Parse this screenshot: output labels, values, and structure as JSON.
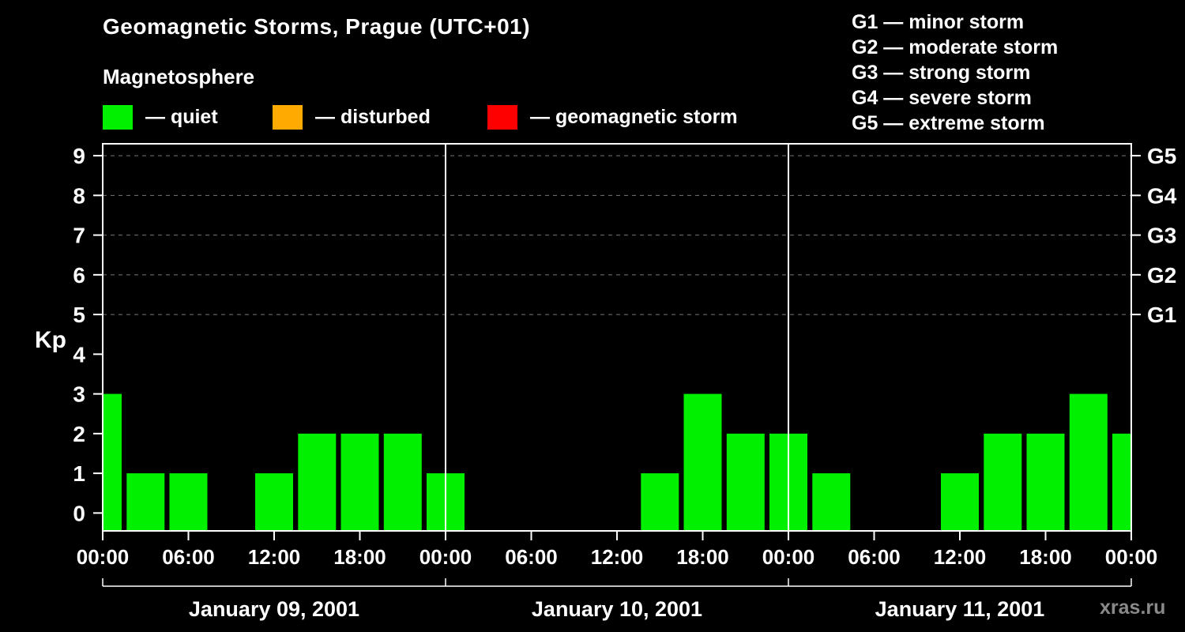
{
  "header": {
    "title": "Geomagnetic Storms, Prague (UTC+01)",
    "subtitle": "Magnetosphere"
  },
  "legend": [
    {
      "name": "quiet",
      "label": "— quiet",
      "color": "#00f000"
    },
    {
      "name": "disturbed",
      "label": "— disturbed",
      "color": "#ffaa00"
    },
    {
      "name": "storm",
      "label": "— geomagnetic storm",
      "color": "#ff0000"
    }
  ],
  "storm_scale_legend": [
    "G1 — minor storm",
    "G2 — moderate storm",
    "G3 — strong storm",
    "G4 — severe storm",
    "G5 — extreme storm"
  ],
  "watermark": "xras.ru",
  "chart_data": {
    "type": "bar",
    "ylabel": "Kp",
    "ylim": [
      -0.45,
      9.3
    ],
    "yticks": [
      0,
      1,
      2,
      3,
      4,
      5,
      6,
      7,
      8,
      9
    ],
    "grid_levels": [
      5,
      6,
      7,
      8,
      9
    ],
    "right_axis_labels": [
      {
        "kp": 5,
        "label": "G1"
      },
      {
        "kp": 6,
        "label": "G2"
      },
      {
        "kp": 7,
        "label": "G3"
      },
      {
        "kp": 8,
        "label": "G4"
      },
      {
        "kp": 9,
        "label": "G5"
      }
    ],
    "bar_color": "#00f000",
    "axis_color": "#ffffff",
    "grid_color": "#787878",
    "time_step_hours": 3,
    "total_hours": 72,
    "x_tick_step_hours": 6,
    "x_tick_labels": [
      "00:00",
      "06:00",
      "12:00",
      "18:00",
      "00:00",
      "06:00",
      "12:00",
      "18:00",
      "00:00",
      "06:00",
      "12:00",
      "18:00",
      "00:00"
    ],
    "days": [
      {
        "label": "January 09, 2001",
        "kp_3h": [
          3,
          1,
          1,
          0,
          1,
          2,
          2,
          2
        ]
      },
      {
        "label": "January 10, 2001",
        "kp_3h": [
          1,
          0,
          0,
          0,
          0,
          1,
          3,
          2
        ]
      },
      {
        "label": "January 11, 2001",
        "kp_3h": [
          2,
          1,
          0,
          0,
          1,
          2,
          2,
          3
        ]
      }
    ],
    "closing_kp_next_day_start": 2,
    "kp_values": [
      3,
      1,
      1,
      0,
      1,
      2,
      2,
      2,
      1,
      0,
      0,
      0,
      0,
      1,
      3,
      2,
      2,
      1,
      0,
      0,
      1,
      2,
      2,
      3,
      2
    ]
  }
}
